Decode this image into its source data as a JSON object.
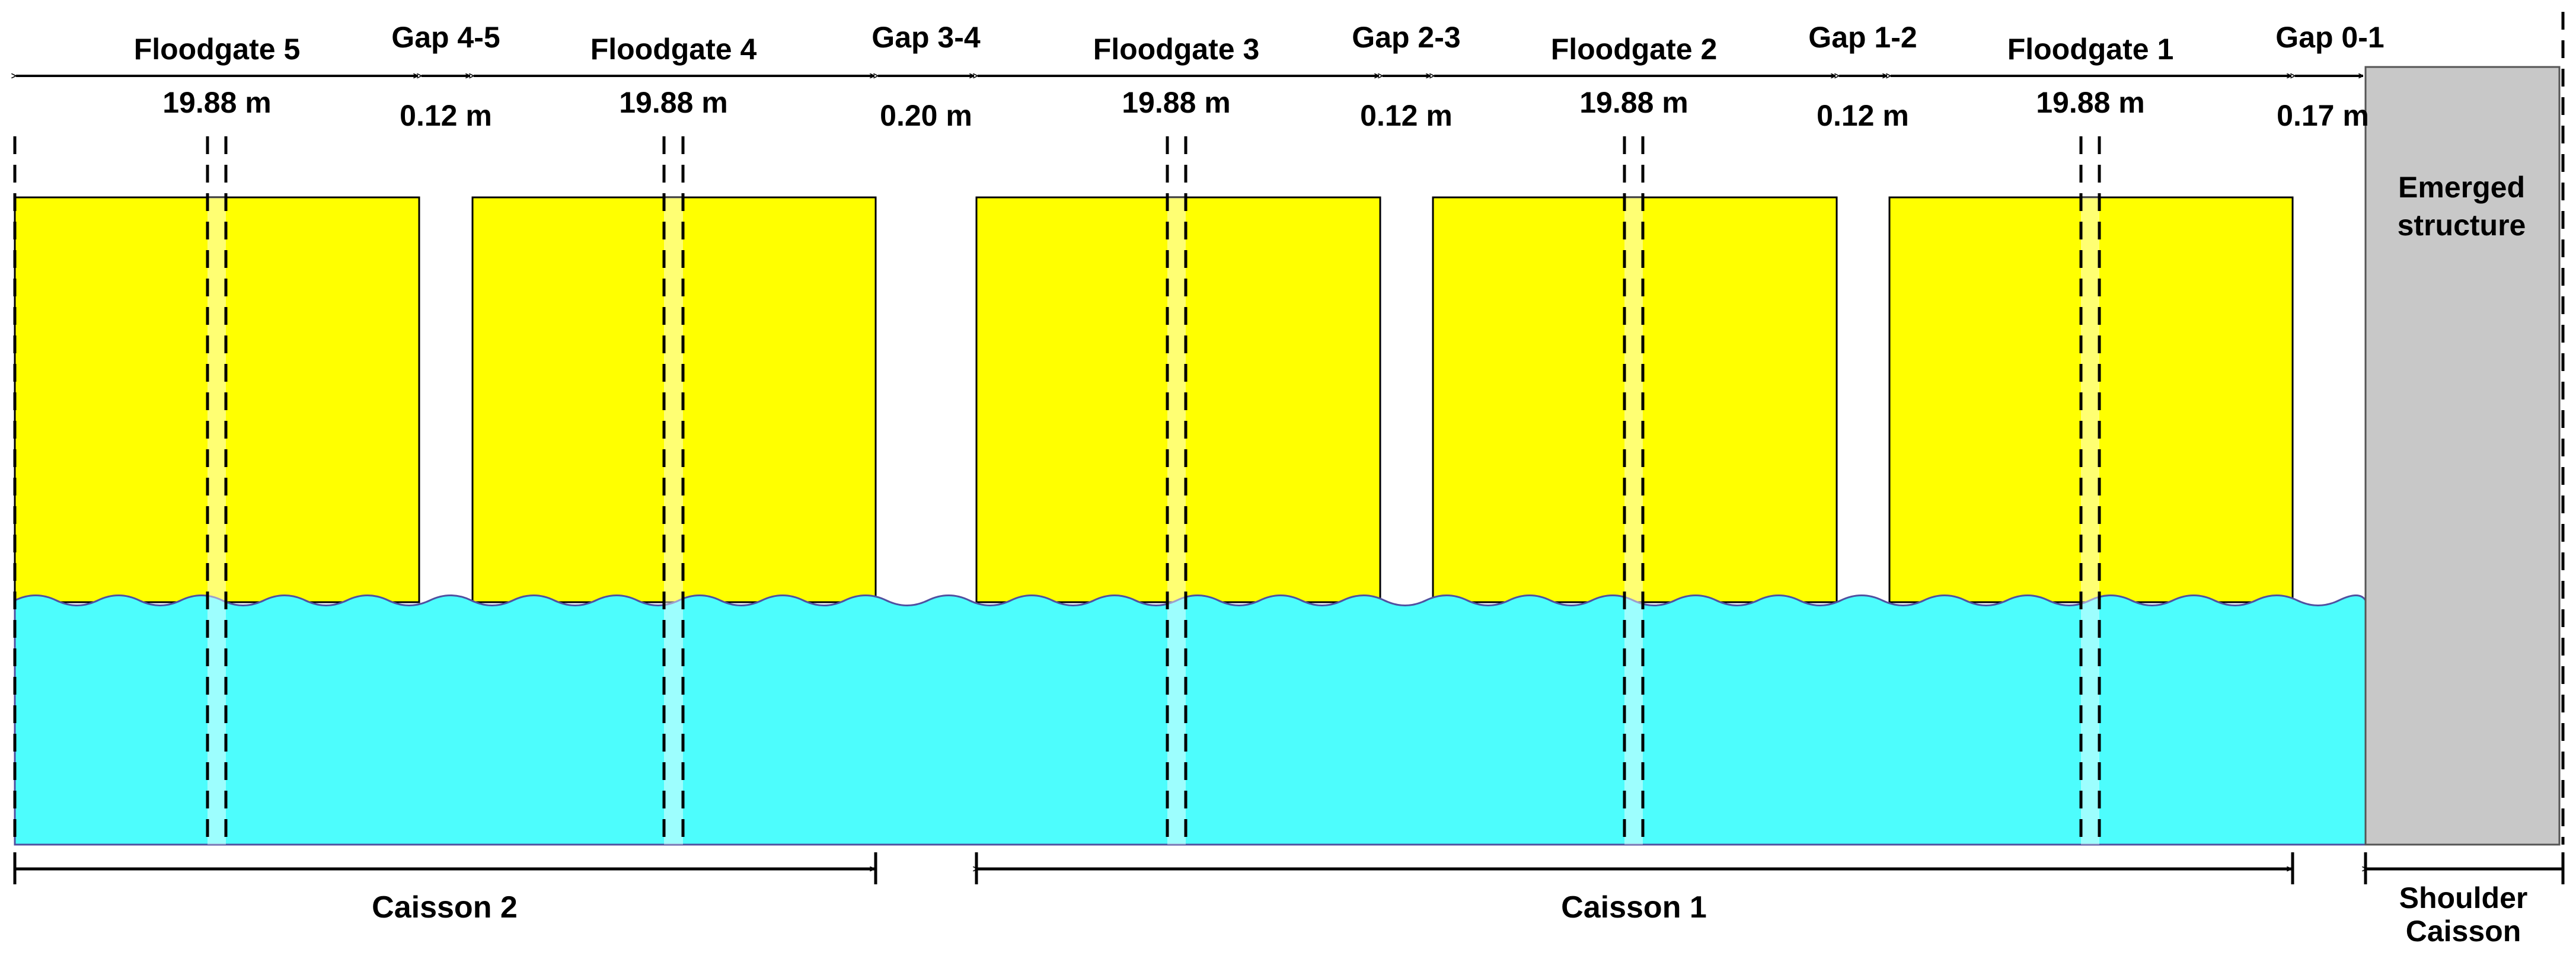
{
  "floodgates": [
    {
      "name": "Floodgate 5",
      "width": "19.88 m"
    },
    {
      "name": "Floodgate 4",
      "width": "19.88 m"
    },
    {
      "name": "Floodgate 3",
      "width": "19.88 m"
    },
    {
      "name": "Floodgate 2",
      "width": "19.88 m"
    },
    {
      "name": "Floodgate 1",
      "width": "19.88 m"
    }
  ],
  "gaps": [
    {
      "name": "Gap 4-5",
      "width": "0.12 m"
    },
    {
      "name": "Gap 3-4",
      "width": "0.20 m"
    },
    {
      "name": "Gap 2-3",
      "width": "0.12 m"
    },
    {
      "name": "Gap 1-2",
      "width": "0.12 m"
    },
    {
      "name": "Gap 0-1",
      "width": "0.17 m"
    }
  ],
  "emerged_structure": {
    "line1": "Emerged",
    "line2": "structure"
  },
  "caissons": [
    {
      "name": "Caisson 2"
    },
    {
      "name": "Caisson 1"
    },
    {
      "name_line1": "Shoulder",
      "name_line2": "Caisson"
    }
  ],
  "colors": {
    "floodgate": "#ffff00",
    "water": "#4dfdfd",
    "structure": "#c8c8c8"
  }
}
